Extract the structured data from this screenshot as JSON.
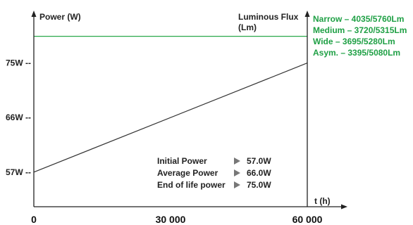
{
  "chart_data": {
    "type": "line",
    "x_axis_label": "t (h)",
    "y_axis_left_label": "Power (W)",
    "y_axis_right_label": [
      "Luminous Flux",
      "(Lm)"
    ],
    "x_ticks": [
      {
        "value": 0,
        "label": "0"
      },
      {
        "value": 30000,
        "label": "30 000"
      },
      {
        "value": 60000,
        "label": "60 000"
      }
    ],
    "y_ticks": [
      {
        "value": 57,
        "label": "57W --"
      },
      {
        "value": 66,
        "label": "66W --"
      },
      {
        "value": 75,
        "label": "75W --"
      }
    ],
    "xlim": [
      0,
      60000
    ],
    "ylim": [
      51.3,
      83.3
    ],
    "series": [
      {
        "kind": "power_line",
        "color": "#333333",
        "x": [
          0,
          60000
        ],
        "y": [
          57,
          75
        ]
      },
      {
        "kind": "flux_reference",
        "color": "#2aa84a",
        "x": [
          0,
          60000
        ],
        "y": [
          79.4,
          79.4
        ]
      }
    ],
    "flux_labels": [
      "Narrow – 4035/5760Lm",
      "Medium – 3720/5315Lm",
      "Wide – 3695/5280Lm",
      "Asym. – 3395/5080Lm"
    ],
    "flux_label_color": "#1fa045",
    "power_summary": [
      {
        "label": "Initial Power",
        "value": "57.0W"
      },
      {
        "label": "Average Power",
        "value": "66.0W"
      },
      {
        "label": "End  of life power",
        "value": "75.0W"
      }
    ],
    "grid": false,
    "axis_color": "#222222",
    "marker_color": "#777777"
  }
}
